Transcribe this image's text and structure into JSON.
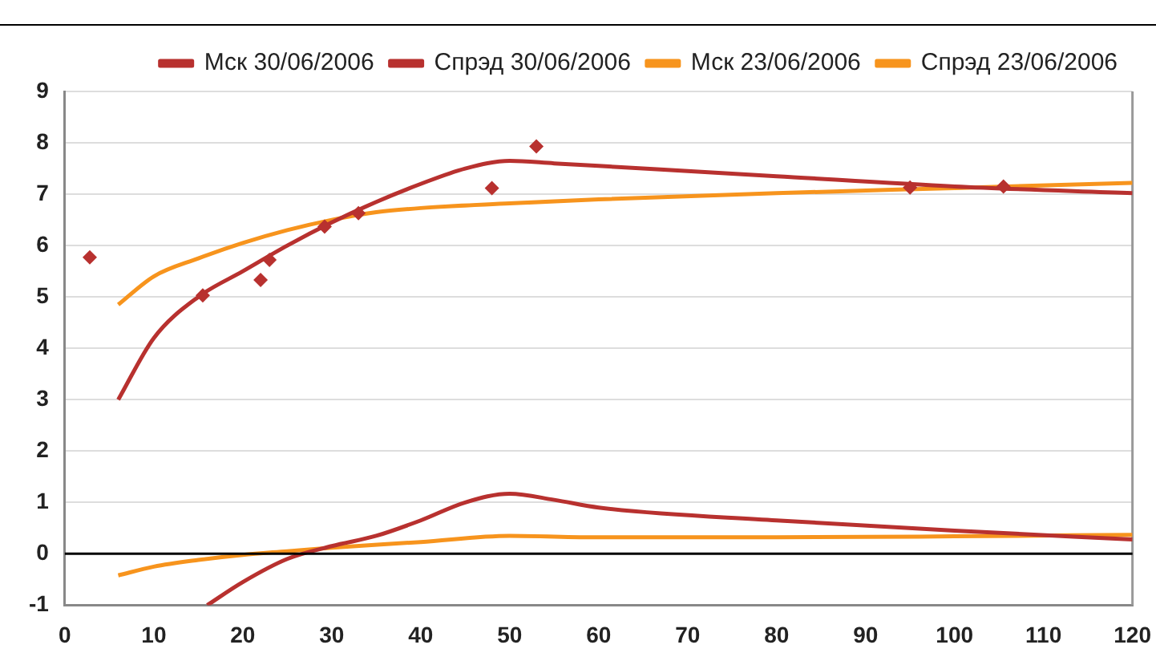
{
  "chart_data": {
    "type": "line",
    "xlim": [
      0,
      120
    ],
    "xticks": [
      0,
      10,
      20,
      30,
      40,
      50,
      60,
      70,
      80,
      90,
      100,
      110,
      120
    ],
    "ylim": [
      -1,
      9
    ],
    "yticks": [
      -1,
      0,
      1,
      2,
      3,
      4,
      5,
      6,
      7,
      8,
      9
    ],
    "grid": "y",
    "legend": "top",
    "marker": "none",
    "line_style": "solid",
    "ref_lines": [
      {
        "axis": "y",
        "value": 0,
        "color": "#000000"
      }
    ],
    "series": [
      {
        "name": "Мск 30/06/2006",
        "color": "#b8312f",
        "x": [
          6,
          10,
          15,
          20,
          25,
          30,
          35,
          40,
          45,
          50,
          55,
          60,
          80,
          100,
          120
        ],
        "values": [
          3.0,
          4.2,
          5.0,
          5.5,
          6.0,
          6.45,
          6.85,
          7.2,
          7.5,
          7.65,
          7.6,
          7.55,
          7.35,
          7.15,
          7.02
        ]
      },
      {
        "name": "Спрэд 30/06/2006",
        "color": "#b8312f",
        "x": [
          16,
          20,
          25,
          30,
          35,
          40,
          45,
          50,
          55,
          60,
          80,
          100,
          120
        ],
        "values": [
          -1.0,
          -0.55,
          -0.1,
          0.15,
          0.35,
          0.65,
          1.0,
          1.17,
          1.05,
          0.9,
          0.65,
          0.45,
          0.28
        ]
      },
      {
        "name": "Мск 23/06/2006",
        "color": "#f7941d",
        "x": [
          6,
          10,
          15,
          20,
          25,
          30,
          35,
          40,
          50,
          60,
          80,
          100,
          120
        ],
        "values": [
          4.85,
          5.4,
          5.75,
          6.05,
          6.3,
          6.5,
          6.65,
          6.73,
          6.82,
          6.9,
          7.02,
          7.12,
          7.22
        ]
      },
      {
        "name": "Спрэд 23/06/2006",
        "color": "#f7941d",
        "x": [
          6,
          10,
          15,
          20,
          25,
          30,
          40,
          50,
          60,
          80,
          100,
          120
        ],
        "values": [
          -0.42,
          -0.25,
          -0.12,
          -0.02,
          0.05,
          0.12,
          0.23,
          0.35,
          0.32,
          0.32,
          0.34,
          0.37
        ]
      },
      {
        "type": "scatter",
        "marker": "diamond",
        "color": "#b8312f",
        "x": [
          2.8,
          15.5,
          22,
          23,
          29.2,
          33,
          48,
          53,
          95,
          105.5
        ],
        "values": [
          5.77,
          5.03,
          5.33,
          5.72,
          6.37,
          6.63,
          7.12,
          7.93,
          7.13,
          7.15
        ]
      }
    ]
  }
}
